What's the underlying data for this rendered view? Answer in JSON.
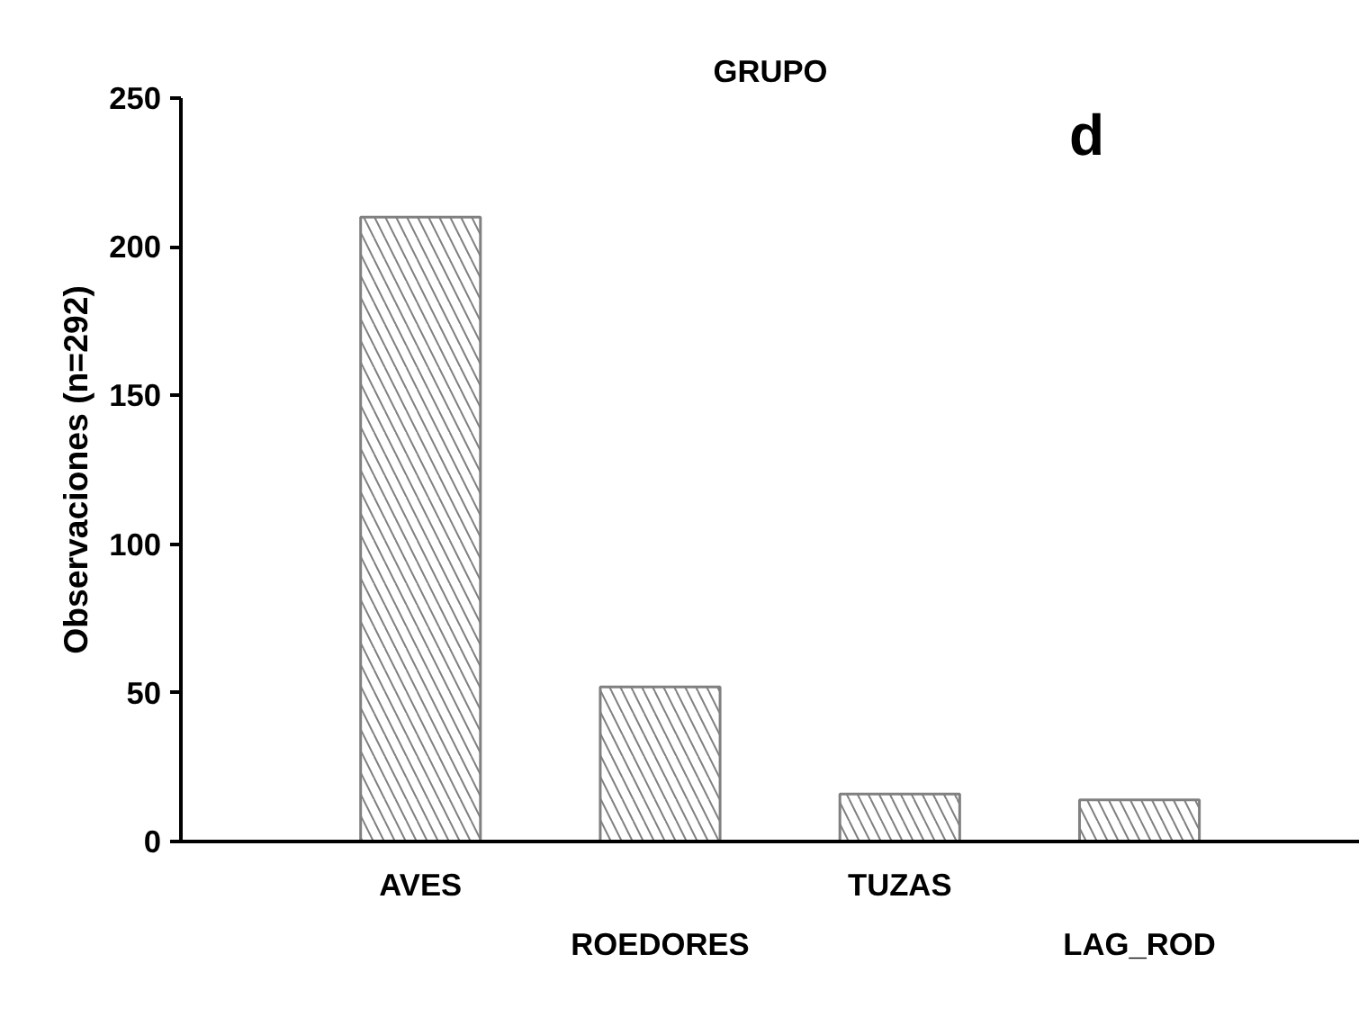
{
  "chart_data": {
    "type": "bar",
    "title": "GRUPO",
    "ylabel": "Observaciones (n=292)",
    "categories": [
      "AVES",
      "ROEDORES",
      "TUZAS",
      "LAG_ROD"
    ],
    "values": [
      210,
      52,
      16,
      14
    ],
    "color": "#808080",
    "ylim": [
      0,
      250
    ],
    "yticks": [
      0,
      50,
      100,
      150,
      200,
      250
    ],
    "annotations": [
      "d"
    ],
    "grid": false
  }
}
